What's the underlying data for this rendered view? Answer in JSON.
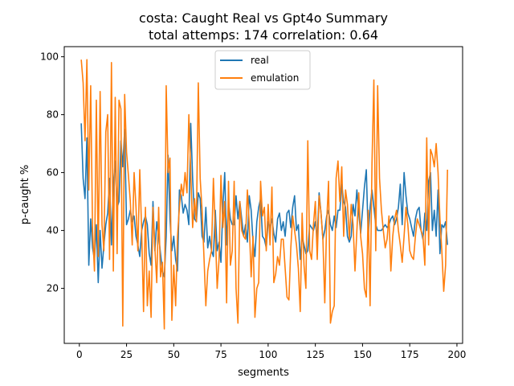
{
  "chart_data": {
    "type": "line",
    "title": "costa: Caught Real vs Gpt4o Summary",
    "subtitle": "total attemps: 174 correlation: 0.64",
    "xlabel": "segments",
    "ylabel": "p-caught %",
    "xlim": [
      -8,
      203
    ],
    "ylim": [
      1,
      103.5
    ],
    "xticks": [
      0,
      25,
      50,
      75,
      100,
      125,
      150,
      175,
      200
    ],
    "yticks": [
      20,
      40,
      60,
      80,
      100
    ],
    "grid": false,
    "legend_position": "top-center",
    "series": [
      {
        "name": "real",
        "color": "#1f77b4",
        "x": [
          1,
          2,
          3,
          4,
          5,
          6,
          7,
          8,
          9,
          10,
          11,
          12,
          13,
          14,
          15,
          16,
          17,
          18,
          19,
          20,
          21,
          22,
          23,
          24,
          25,
          26,
          27,
          28,
          29,
          30,
          31,
          32,
          33,
          34,
          35,
          36,
          37,
          38,
          39,
          40,
          41,
          42,
          43,
          44,
          45,
          46,
          47,
          48,
          49,
          50,
          51,
          52,
          53,
          54,
          55,
          56,
          57,
          58,
          59,
          60,
          61,
          62,
          63,
          64,
          65,
          66,
          67,
          68,
          69,
          70,
          71,
          72,
          73,
          74,
          75,
          76,
          77,
          78,
          79,
          80,
          81,
          82,
          83,
          84,
          85,
          86,
          87,
          88,
          89,
          90,
          91,
          92,
          93,
          94,
          95,
          96,
          97,
          98,
          99,
          100,
          101,
          102,
          103,
          104,
          105,
          106,
          107,
          108,
          109,
          110,
          111,
          112,
          113,
          114,
          115,
          116,
          117,
          118,
          119,
          120,
          121,
          122,
          123,
          124,
          125,
          126,
          127,
          128,
          129,
          130,
          131,
          132,
          133,
          134,
          135,
          136,
          137,
          138,
          139,
          140,
          141,
          142,
          143,
          144,
          145,
          146,
          147,
          148,
          149,
          150,
          151,
          152,
          153,
          154,
          155,
          156,
          157,
          158,
          159,
          160,
          161,
          162,
          163,
          164,
          165,
          166,
          167,
          168,
          169,
          170,
          171,
          172,
          173,
          174,
          175,
          176,
          177,
          178,
          179,
          180,
          181,
          182,
          183,
          184,
          185,
          186,
          187,
          188,
          189,
          190,
          191,
          192,
          193,
          194,
          195
        ],
        "values": [
          77,
          58,
          51,
          72,
          28,
          44,
          34,
          30,
          42,
          22,
          40,
          27,
          35,
          42,
          46,
          58,
          35,
          56,
          64,
          48,
          50,
          71,
          62,
          75,
          42,
          44,
          47,
          43,
          45,
          38,
          35,
          31,
          40,
          43,
          45,
          42,
          32,
          28,
          50,
          33,
          43,
          38,
          32,
          26,
          24,
          38,
          66,
          44,
          33,
          38,
          30,
          26,
          54,
          52,
          46,
          49,
          47,
          42,
          77,
          58,
          44,
          43,
          53,
          51,
          38,
          36,
          48,
          34,
          38,
          33,
          31,
          47,
          33,
          36,
          29,
          48,
          60,
          35,
          50,
          44,
          42,
          42,
          52,
          44,
          50,
          44,
          38,
          42,
          36,
          52,
          47,
          36,
          31,
          43,
          48,
          51,
          38,
          37,
          34,
          43,
          41,
          44,
          39,
          36,
          44,
          46,
          40,
          43,
          38,
          46,
          47,
          41,
          48,
          52,
          40,
          42,
          30,
          38,
          35,
          32,
          33,
          42,
          41,
          40,
          43,
          37,
          53,
          46,
          37,
          40,
          45,
          47,
          42,
          40,
          45,
          41,
          47,
          47,
          56,
          50,
          48,
          38,
          36,
          38,
          49,
          45,
          54,
          46,
          39,
          47,
          55,
          61,
          38,
          48,
          54,
          48,
          42,
          40,
          40,
          40,
          41,
          42,
          41,
          42,
          44,
          45,
          42,
          44,
          48,
          56,
          42,
          60,
          52,
          46,
          44,
          41,
          38,
          44,
          47,
          48,
          40,
          37,
          46,
          40,
          57,
          60,
          40,
          47,
          38,
          54,
          32,
          42,
          41,
          43,
          35
        ]
      },
      {
        "name": "emulation",
        "color": "#ff7f0e",
        "x": [
          1,
          2,
          3,
          4,
          5,
          6,
          7,
          8,
          9,
          10,
          11,
          12,
          13,
          14,
          15,
          16,
          17,
          18,
          19,
          20,
          21,
          22,
          23,
          24,
          25,
          26,
          27,
          28,
          29,
          30,
          31,
          32,
          33,
          34,
          35,
          36,
          37,
          38,
          39,
          40,
          41,
          42,
          43,
          44,
          45,
          46,
          47,
          48,
          49,
          50,
          51,
          52,
          53,
          54,
          55,
          56,
          57,
          58,
          59,
          60,
          61,
          62,
          63,
          64,
          65,
          66,
          67,
          68,
          69,
          70,
          71,
          72,
          73,
          74,
          75,
          76,
          77,
          78,
          79,
          80,
          81,
          82,
          83,
          84,
          85,
          86,
          87,
          88,
          89,
          90,
          91,
          92,
          93,
          94,
          95,
          96,
          97,
          98,
          99,
          100,
          101,
          102,
          103,
          104,
          105,
          106,
          107,
          108,
          109,
          110,
          111,
          112,
          113,
          114,
          115,
          116,
          117,
          118,
          119,
          120,
          121,
          122,
          123,
          124,
          125,
          126,
          127,
          128,
          129,
          130,
          131,
          132,
          133,
          134,
          135,
          136,
          137,
          138,
          139,
          140,
          141,
          142,
          143,
          144,
          145,
          146,
          147,
          148,
          149,
          150,
          151,
          152,
          153,
          154,
          155,
          156,
          157,
          158,
          159,
          160,
          161,
          162,
          163,
          164,
          165,
          166,
          167,
          168,
          169,
          170,
          171,
          172,
          173,
          174,
          175,
          176,
          177,
          178,
          179,
          180,
          181,
          182,
          183,
          184,
          185,
          186,
          187,
          188,
          189,
          190,
          191,
          192,
          193,
          194,
          195
        ],
        "values": [
          99,
          91,
          71,
          99,
          54,
          90,
          40,
          26,
          85,
          31,
          88,
          42,
          33,
          74,
          80,
          30,
          98,
          26,
          86,
          32,
          85,
          82,
          7,
          87,
          67,
          59,
          50,
          35,
          60,
          48,
          33,
          61,
          40,
          12,
          48,
          14,
          26,
          10,
          48,
          34,
          22,
          48,
          24,
          29,
          6,
          90,
          60,
          65,
          9,
          28,
          14,
          38,
          48,
          56,
          52,
          60,
          53,
          80,
          60,
          41,
          51,
          43,
          91,
          58,
          47,
          31,
          14,
          26,
          30,
          33,
          58,
          40,
          20,
          30,
          59,
          41,
          50,
          15,
          57,
          28,
          33,
          57,
          20,
          8,
          50,
          40,
          38,
          37,
          54,
          42,
          24,
          38,
          10,
          20,
          22,
          57,
          45,
          48,
          33,
          49,
          35,
          55,
          22,
          25,
          31,
          28,
          37,
          37,
          27,
          17,
          16,
          34,
          45,
          40,
          35,
          27,
          12,
          46,
          28,
          20,
          71,
          33,
          30,
          42,
          50,
          30,
          52,
          46,
          37,
          15,
          43,
          57,
          8,
          12,
          14,
          58,
          64,
          50,
          62,
          38,
          54,
          49,
          37,
          49,
          42,
          26,
          40,
          53,
          38,
          32,
          20,
          17,
          47,
          14,
          63,
          92,
          33,
          90,
          58,
          47,
          40,
          34,
          37,
          45,
          26,
          38,
          44,
          47,
          40,
          35,
          29,
          38,
          48,
          42,
          33,
          31,
          30,
          38,
          44,
          42,
          40,
          38,
          28,
          72,
          35,
          68,
          66,
          62,
          70,
          60,
          44,
          33,
          19,
          28,
          61
        ]
      }
    ]
  }
}
